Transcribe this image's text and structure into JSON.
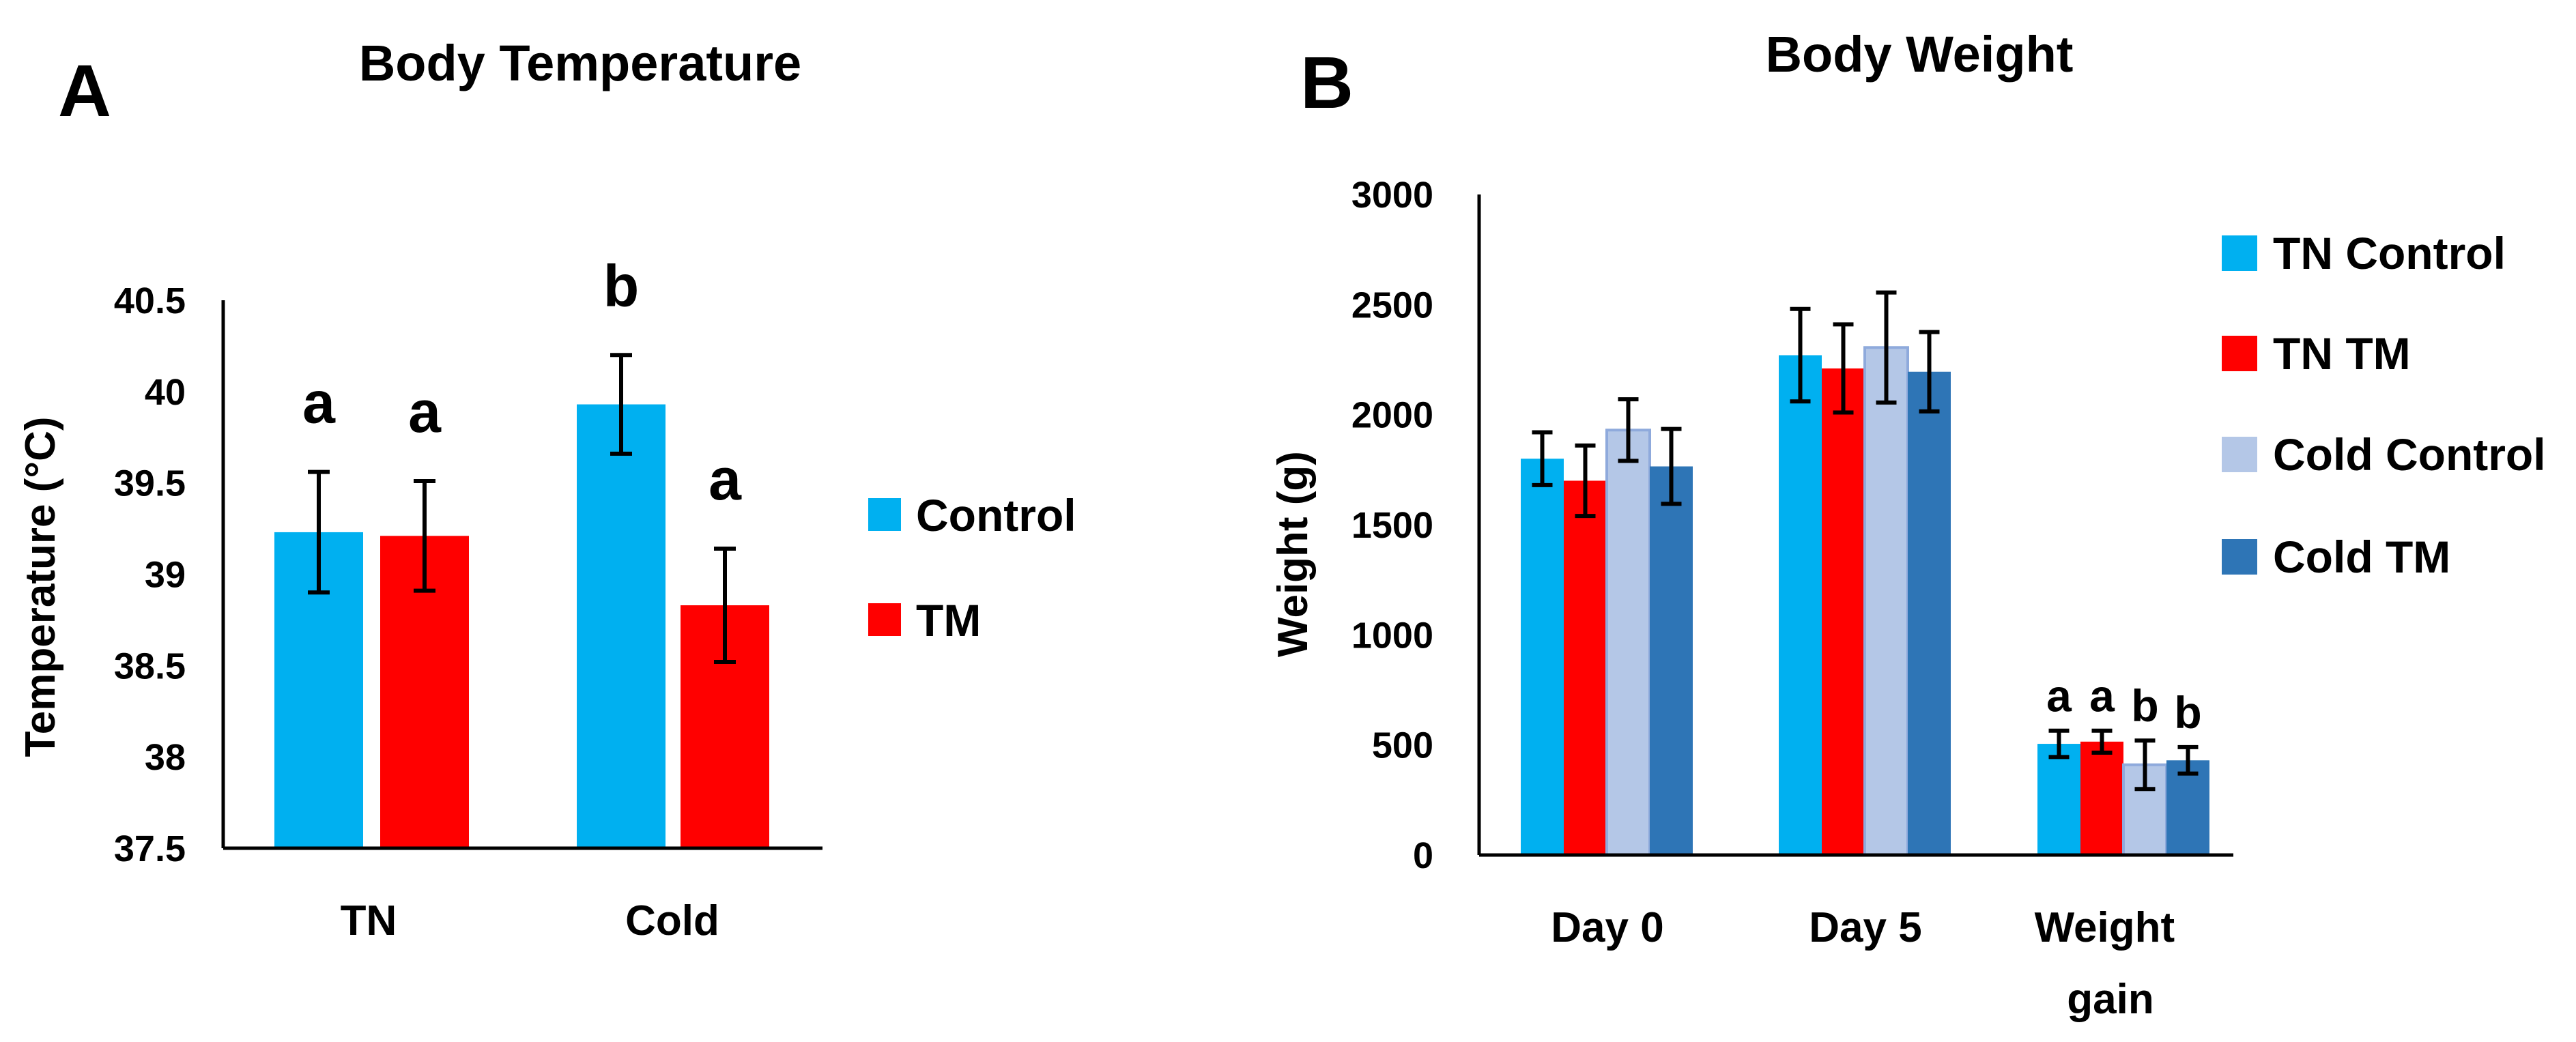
{
  "chart_data": [
    {
      "panel": "A",
      "type": "bar",
      "title": "Body Temperature",
      "ylabel": "Temperature (°C)",
      "xlabel": "",
      "ylim": [
        37.5,
        40.5
      ],
      "yticks": [
        "37.5",
        "38",
        "38.5",
        "39",
        "39.5",
        "40",
        "40.5"
      ],
      "categories": [
        "TN",
        "Cold"
      ],
      "series": [
        {
          "name": "Control",
          "color": "#00b0f0",
          "values": [
            39.23,
            39.93
          ],
          "errors": [
            0.33,
            0.27
          ],
          "letters": [
            "a",
            "b"
          ]
        },
        {
          "name": "TM",
          "color": "#ff0000",
          "values": [
            39.21,
            38.83
          ],
          "errors": [
            0.3,
            0.31
          ],
          "letters": [
            "a",
            "a"
          ]
        }
      ],
      "legend": "right",
      "grid": false
    },
    {
      "panel": "B",
      "type": "bar",
      "title": "Body Weight",
      "ylabel": "Weight (g)",
      "xlabel": "",
      "ylim": [
        0,
        3000
      ],
      "yticks": [
        "0",
        "500",
        "1000",
        "1500",
        "2000",
        "2500",
        "3000"
      ],
      "categories": [
        "Day 0",
        "Day 5",
        "Weight gain"
      ],
      "series": [
        {
          "name": "TN Control",
          "color": "#00b0f0",
          "values": [
            1800,
            2270,
            505
          ],
          "errors": [
            120,
            210,
            60
          ]
        },
        {
          "name": "TN TM",
          "color": "#ff0000",
          "values": [
            1700,
            2210,
            515
          ],
          "errors": [
            160,
            200,
            50
          ]
        },
        {
          "name": "Cold Control",
          "color": "#b4c7e7",
          "values": [
            1930,
            2305,
            410
          ],
          "errors": [
            140,
            250,
            110
          ]
        },
        {
          "name": "Cold TM",
          "color": "#2e75b6",
          "values": [
            1765,
            2195,
            430
          ],
          "errors": [
            170,
            180,
            60
          ]
        }
      ],
      "annotations": {
        "category": "Weight gain",
        "letters": [
          "a",
          "a",
          "b",
          "b"
        ]
      },
      "legend": "right",
      "grid": false
    }
  ]
}
